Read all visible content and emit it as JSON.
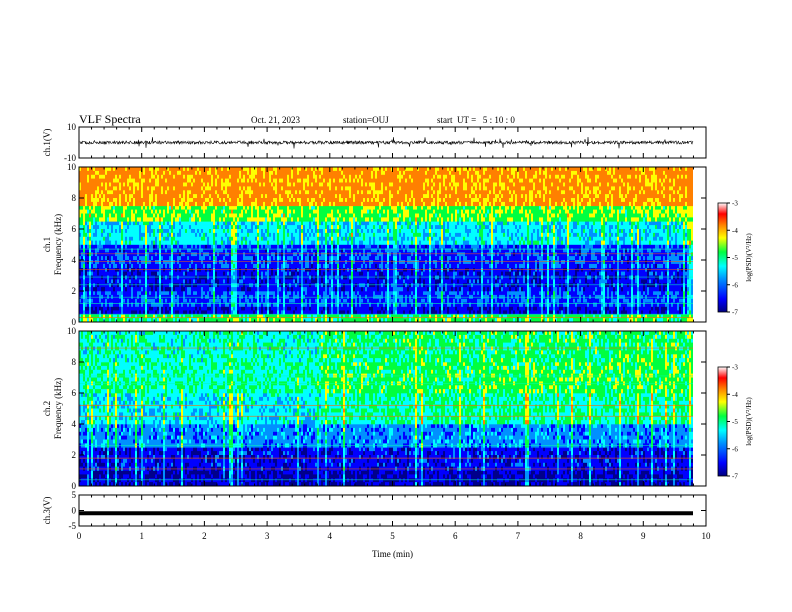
{
  "header": {
    "title": "VLF Spectra",
    "date": "Oct. 21, 2023",
    "station": "station=OUJ",
    "start": "start  UT =   5 : 10 : 0"
  },
  "colors": {
    "colormap": [
      "#00008b",
      "#0000ff",
      "#0090ff",
      "#00ffff",
      "#00ff40",
      "#ffff00",
      "#ff8000",
      "#ff0000",
      "#ffffff"
    ]
  },
  "chart_data": [
    {
      "type": "line",
      "panel": "ch1-waveform",
      "ylabel": "ch.1(V)",
      "ylim": [
        -10,
        10
      ],
      "yticks": [
        10,
        -10
      ],
      "description_values": {
        "baseline": 0,
        "typical_amplitude": 2,
        "max_spike": 4
      }
    },
    {
      "type": "heatmap",
      "panel": "ch1-spectrogram",
      "ylabel": "ch.1\nFrequency  (kHz)",
      "xlim": [
        0,
        9.85
      ],
      "ylim": [
        0,
        10
      ],
      "yticks": [
        0,
        2,
        4,
        6,
        8,
        10
      ],
      "colorbar": {
        "label": "log(PSD)(V²/Hz)",
        "range": [
          -7,
          -3
        ],
        "ticks": [
          -3,
          -4,
          -5,
          -6,
          -7
        ]
      },
      "bands": [
        {
          "f": [
            0,
            0.5
          ],
          "level": -4.5
        },
        {
          "f": [
            0.5,
            1.0
          ],
          "level": -6.3
        },
        {
          "f": [
            1.0,
            2.0
          ],
          "level": -5.9
        },
        {
          "f": [
            2.0,
            3.5
          ],
          "level": -6.2
        },
        {
          "f": [
            3.5,
            5.0
          ],
          "level": -6.0
        },
        {
          "f": [
            5.0,
            6.5
          ],
          "level": -5.1
        },
        {
          "f": [
            6.5,
            7.5
          ],
          "level": -4.3
        },
        {
          "f": [
            7.5,
            10
          ],
          "level": -3.4
        }
      ],
      "lines_khz": [
        0.3,
        0.5,
        1.2,
        1.6,
        2.4,
        2.9,
        3.4,
        3.9,
        4.4,
        4.7
      ]
    },
    {
      "type": "heatmap",
      "panel": "ch2-spectrogram",
      "ylabel": "ch.2\nFrequency  (kHz)",
      "xlim": [
        0,
        9.85
      ],
      "ylim": [
        0,
        10
      ],
      "yticks": [
        0,
        2,
        4,
        6,
        8,
        10
      ],
      "colorbar": {
        "label": "log(PSD)(V²/Hz)",
        "range": [
          -7,
          -3
        ],
        "ticks": [
          -3,
          -4,
          -5,
          -6,
          -7
        ]
      },
      "bands": [
        {
          "f": [
            0,
            1.0
          ],
          "level": -6.5
        },
        {
          "f": [
            1.0,
            2.5
          ],
          "level": -6.2
        },
        {
          "f": [
            2.5,
            4.0
          ],
          "level": -5.6
        },
        {
          "f": [
            4.0,
            6.0
          ],
          "level": -5.1
        },
        {
          "f": [
            6.0,
            8.0
          ],
          "level": -4.8
        },
        {
          "f": [
            8.0,
            10
          ],
          "level": -4.9
        }
      ],
      "lines_khz": [
        0.4,
        1.1,
        1.8,
        2.6,
        4.5,
        5.2,
        6.6,
        7.1,
        8.9
      ]
    },
    {
      "type": "line",
      "panel": "ch3-waveform",
      "ylabel": "ch.3(V)",
      "ylim": [
        -5,
        5
      ],
      "yticks": [
        5,
        0,
        -5
      ],
      "y": [
        -0.9,
        -0.9
      ]
    }
  ],
  "xaxis": {
    "label": "Time  (min)",
    "ticks": [
      0,
      1,
      2,
      3,
      4,
      5,
      6,
      7,
      8,
      9,
      10
    ],
    "ticklabels": [
      "0",
      "1",
      "2",
      "3",
      "4",
      "5",
      "6",
      "7",
      "8",
      "9",
      "10"
    ],
    "range": [
      0,
      10
    ]
  }
}
